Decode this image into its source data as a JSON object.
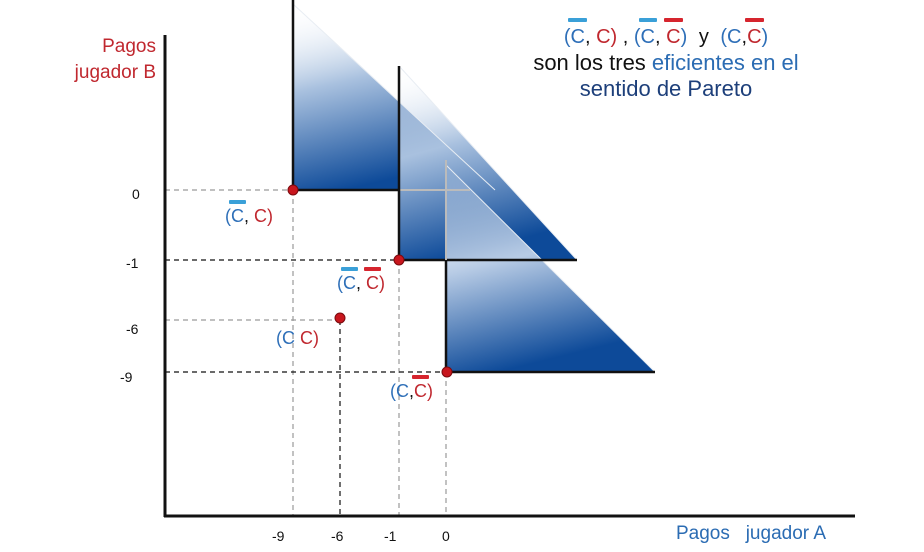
{
  "axes": {
    "y_label_line1": "Pagos",
    "y_label_line2": "jugador B",
    "x_label": "Pagos   jugador A",
    "x_ticks": [
      "-9",
      "-6",
      "-1",
      "0"
    ],
    "y_ticks": [
      "0",
      "-1",
      "-6",
      "-9"
    ]
  },
  "note": {
    "line2_a": "son los tres ",
    "line2_b": "eficientes en el",
    "line3": "sentido de Pareto",
    "comma": ",",
    "y": "y"
  },
  "points": [
    {
      "x": -9,
      "y": 0,
      "label": "(C, C)"
    },
    {
      "x": -1,
      "y": -1,
      "label": "(C, C)"
    },
    {
      "x": -6,
      "y": -6,
      "label": "(C C)"
    },
    {
      "x": 0,
      "y": -9,
      "label": "(C,C)"
    }
  ],
  "labels": {
    "p1_open": "(",
    "p1_c1": "C",
    "p1_sep": ", ",
    "p1_c2": "C",
    "p1_close": ")",
    "p2_open": "(",
    "p2_c1": "C",
    "p2_sep": ", ",
    "p2_c2": "C",
    "p2_close": ")",
    "p3_open": "(",
    "p3_c1": "C",
    "p3_sep": " ",
    "p3_c2": "C",
    "p3_close": ")",
    "p4_open": "(",
    "p4_c1": "C",
    "p4_sep": ",",
    "p4_c2": "C",
    "p4_close": ")"
  },
  "colors": {
    "player_b": "#c0282f",
    "player_a": "#2b6cb3",
    "point": "#c8161d",
    "shade": "#0d4a99"
  }
}
